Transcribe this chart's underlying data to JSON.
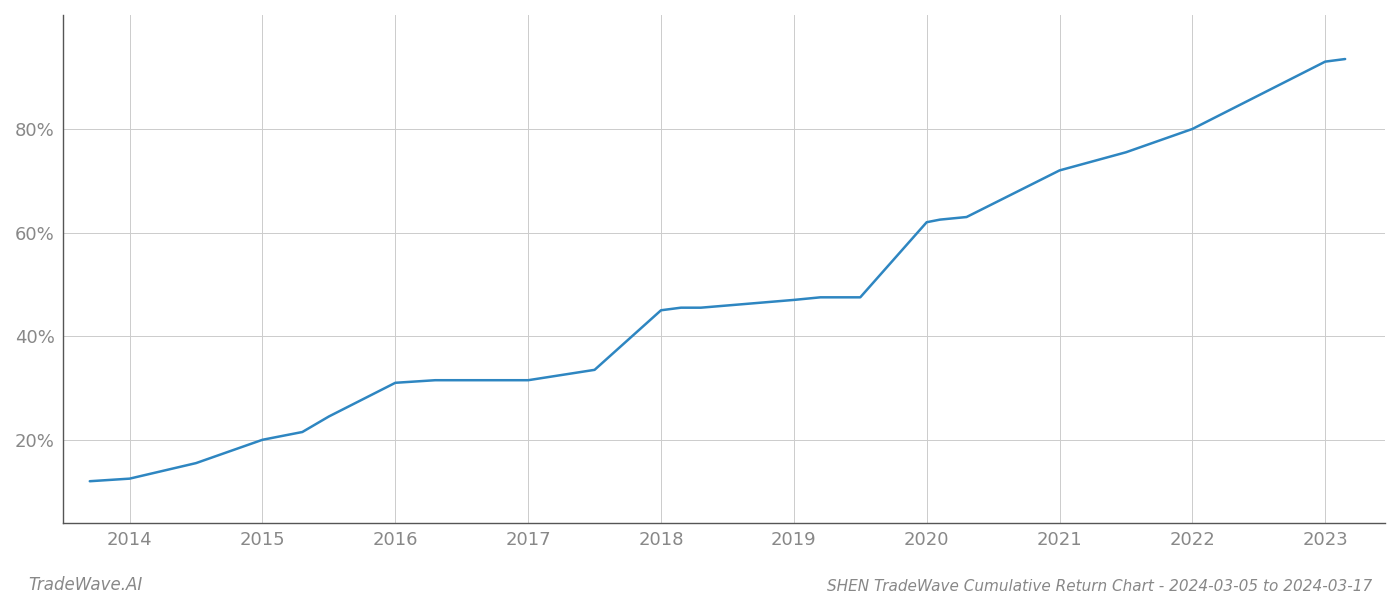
{
  "x_values": [
    2013.7,
    2014.0,
    2014.5,
    2015.0,
    2015.3,
    2015.5,
    2016.0,
    2016.3,
    2016.5,
    2017.0,
    2017.25,
    2017.5,
    2018.0,
    2018.15,
    2018.3,
    2019.0,
    2019.2,
    2019.5,
    2020.0,
    2020.1,
    2020.3,
    2021.0,
    2021.5,
    2022.0,
    2022.5,
    2023.0,
    2023.15
  ],
  "y_values": [
    0.12,
    0.125,
    0.155,
    0.2,
    0.215,
    0.245,
    0.31,
    0.315,
    0.315,
    0.315,
    0.325,
    0.335,
    0.45,
    0.455,
    0.455,
    0.47,
    0.475,
    0.475,
    0.62,
    0.625,
    0.63,
    0.72,
    0.755,
    0.8,
    0.865,
    0.93,
    0.935
  ],
  "line_color": "#2e86c1",
  "line_width": 1.8,
  "background_color": "#ffffff",
  "grid_color": "#cccccc",
  "axis_color": "#555555",
  "tick_color": "#888888",
  "title": "SHEN TradeWave Cumulative Return Chart - 2024-03-05 to 2024-03-17",
  "watermark": "TradeWave.AI",
  "xlim": [
    2013.5,
    2023.45
  ],
  "ylim": [
    0.04,
    1.02
  ],
  "yticks": [
    0.2,
    0.4,
    0.6,
    0.8
  ],
  "xticks": [
    2014,
    2015,
    2016,
    2017,
    2018,
    2019,
    2020,
    2021,
    2022,
    2023
  ],
  "title_fontsize": 11,
  "tick_fontsize": 13,
  "watermark_fontsize": 12
}
